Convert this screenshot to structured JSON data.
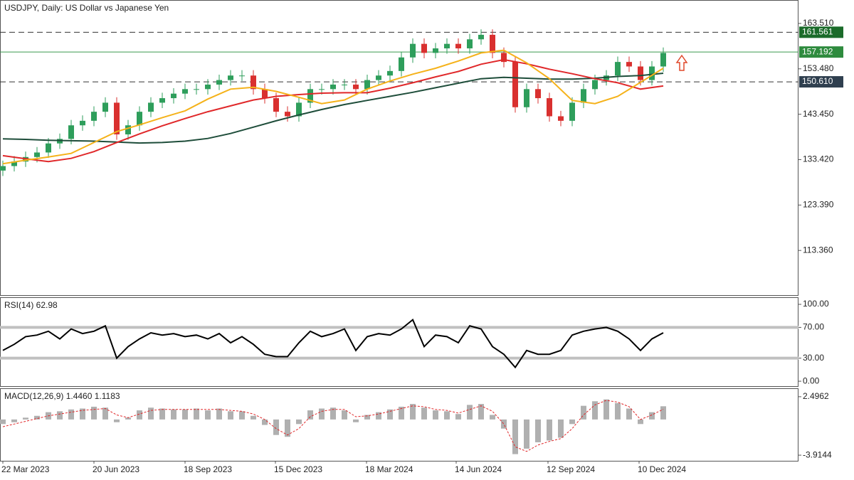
{
  "chart_data": [
    {
      "type": "candlestick",
      "title": "USDJPY, Daily:  US Dollar vs Japanese Yen",
      "x": [
        0,
        8,
        16,
        24,
        32,
        40,
        48,
        56,
        64,
        72,
        80,
        88,
        96,
        104,
        112,
        120,
        128,
        136,
        144,
        152,
        160,
        168,
        176,
        184,
        192,
        200,
        208,
        216,
        224,
        232,
        240,
        248,
        256,
        264,
        272,
        280,
        288,
        296,
        304,
        312,
        320,
        328,
        336,
        344,
        352,
        360,
        368,
        376,
        384,
        392,
        400,
        408,
        416,
        424,
        432,
        440,
        448,
        456,
        464
      ],
      "open": [
        131,
        132,
        133,
        134,
        135,
        137,
        138,
        141,
        142,
        144,
        146,
        139,
        141,
        144,
        146,
        147,
        148,
        149,
        149,
        150,
        151,
        152,
        152,
        149,
        147,
        144,
        143,
        146,
        149,
        149,
        150,
        150,
        149,
        151,
        152,
        153,
        156,
        159,
        157,
        158,
        159,
        158,
        160,
        161,
        157,
        155,
        145,
        149,
        147,
        143,
        142,
        146,
        149,
        151,
        152,
        155,
        154,
        151,
        154
      ],
      "high": [
        133.2,
        134.2,
        135.2,
        136.2,
        138.2,
        139.2,
        142.2,
        143.2,
        145.2,
        147.2,
        147.2,
        142.2,
        145.2,
        147.2,
        148.2,
        149.2,
        150.2,
        150.2,
        151.2,
        152.2,
        153.2,
        153.2,
        153.2,
        150.2,
        148.2,
        145.2,
        147.2,
        150.2,
        150.2,
        151.2,
        151.2,
        151.2,
        152.2,
        153.2,
        154.2,
        157.2,
        160.2,
        160.2,
        159.2,
        160.2,
        160.2,
        161.2,
        162.2,
        162.2,
        158.2,
        156.2,
        150.2,
        150.2,
        148.2,
        144.2,
        147.2,
        150.2,
        152.2,
        153.2,
        156.2,
        156.2,
        155.2,
        155.2,
        158.2
      ],
      "low": [
        129.8,
        130.8,
        131.8,
        132.8,
        133.8,
        135.8,
        136.8,
        139.8,
        140.8,
        142.8,
        137.8,
        137.8,
        139.8,
        142.8,
        144.8,
        145.8,
        146.8,
        147.8,
        147.8,
        148.8,
        149.8,
        150.8,
        147.8,
        145.8,
        142.8,
        141.8,
        141.8,
        144.8,
        147.8,
        147.8,
        148.8,
        147.8,
        147.8,
        149.8,
        150.8,
        151.8,
        154.8,
        155.8,
        155.8,
        156.8,
        156.8,
        156.8,
        158.8,
        155.8,
        153.8,
        143.8,
        143.8,
        145.8,
        141.8,
        140.8,
        140.8,
        144.8,
        147.8,
        149.8,
        150.8,
        152.8,
        149.8,
        149.8,
        152.8
      ],
      "close": [
        132,
        133,
        134,
        135,
        137,
        138,
        141,
        142,
        144,
        146,
        139,
        141,
        144,
        146,
        147,
        148,
        149,
        149,
        150,
        151,
        152,
        152,
        149,
        147,
        144,
        143,
        146,
        149,
        149,
        150,
        150,
        149,
        151,
        152,
        153,
        156,
        159,
        157,
        158,
        159,
        158,
        160,
        161,
        157,
        155,
        145,
        149,
        147,
        143,
        142,
        146,
        149,
        151,
        152,
        155,
        154,
        151,
        154,
        157
      ],
      "up_color": "#2e9e5b",
      "down_color": "#d9302f",
      "series": [
        {
          "color": "#1e4d3a",
          "x": [
            0,
            16,
            32,
            48,
            64,
            80,
            96,
            112,
            128,
            144,
            160,
            176,
            192,
            208,
            224,
            240,
            256,
            272,
            288,
            304,
            320,
            336,
            352,
            368,
            384,
            400,
            416,
            432,
            448,
            464
          ],
          "values": [
            138.0,
            137.9,
            137.7,
            137.6,
            137.5,
            137.3,
            137.1,
            137.2,
            137.5,
            138.1,
            139.2,
            140.6,
            142.0,
            143.3,
            144.5,
            145.6,
            146.5,
            147.4,
            148.3,
            149.3,
            150.3,
            151.3,
            151.6,
            151.4,
            151.2,
            151.2,
            151.4,
            151.8,
            152.0,
            152.5
          ]
        },
        {
          "color": "#e0282a",
          "x": [
            0,
            16,
            32,
            48,
            64,
            80,
            96,
            112,
            128,
            144,
            160,
            176,
            192,
            208,
            224,
            240,
            256,
            272,
            288,
            304,
            320,
            336,
            352,
            368,
            384,
            400,
            416,
            432,
            448,
            464
          ],
          "values": [
            134.3,
            133.6,
            133.0,
            133.7,
            135.2,
            137.2,
            139.1,
            140.9,
            142.5,
            144.0,
            145.3,
            146.6,
            147.4,
            147.8,
            148.1,
            148.2,
            148.2,
            149.2,
            150.4,
            151.7,
            152.9,
            154.5,
            155.5,
            154.6,
            153.4,
            152.4,
            151.3,
            150.4,
            149.0,
            149.7
          ]
        },
        {
          "color": "#f5b21a",
          "x": [
            0,
            16,
            32,
            48,
            64,
            80,
            96,
            112,
            128,
            144,
            160,
            176,
            192,
            208,
            224,
            240,
            256,
            272,
            288,
            304,
            320,
            336,
            352,
            368,
            384,
            400,
            416,
            432,
            448,
            464
          ],
          "values": [
            132.5,
            133.3,
            134.0,
            134.8,
            137.2,
            139.6,
            141.1,
            142.7,
            144.2,
            146.8,
            149.0,
            149.4,
            148.5,
            147.2,
            145.8,
            146.6,
            149.0,
            150.8,
            152.3,
            153.6,
            155.2,
            157.0,
            157.6,
            154.8,
            151.3,
            146.5,
            145.8,
            147.4,
            150.5,
            153.6
          ]
        }
      ],
      "levels": [
        {
          "value": 161.561,
          "style": "dashed",
          "color": "#333333",
          "label_bg": "#1b6b2a"
        },
        {
          "value": 157.192,
          "style": "solid",
          "color": "#3a9a4d",
          "label_bg": "#2e8b3e"
        },
        {
          "value": 150.61,
          "label": "150.610",
          "style": "dashed",
          "color": "#333333",
          "label_bg": "#2f3f4f"
        }
      ],
      "xlim": [
        -2,
        559
      ],
      "ylim": [
        103.49,
        168.53
      ],
      "yticks": [
        {
          "value": 163.51,
          "label": "163.510"
        },
        {
          "value": 153.48,
          "label": "153.480"
        },
        {
          "value": 143.45,
          "label": "143.450"
        },
        {
          "value": 133.42,
          "label": "133.420"
        },
        {
          "value": 123.39,
          "label": "123.390"
        },
        {
          "value": 113.36,
          "label": "113.360"
        }
      ]
    },
    {
      "type": "line",
      "title": "RSI(14) 62.98",
      "color": "#000000",
      "x": [
        0,
        8,
        16,
        24,
        32,
        40,
        48,
        56,
        64,
        72,
        80,
        88,
        96,
        104,
        112,
        120,
        128,
        136,
        144,
        152,
        160,
        168,
        176,
        184,
        192,
        200,
        208,
        216,
        224,
        232,
        240,
        248,
        256,
        264,
        272,
        280,
        288,
        296,
        304,
        312,
        320,
        328,
        336,
        344,
        352,
        360,
        368,
        376,
        384,
        392,
        400,
        408,
        416,
        424,
        432,
        440,
        448,
        456,
        464
      ],
      "values": [
        40,
        48,
        58,
        60,
        65,
        55,
        68,
        62,
        65,
        72,
        30,
        45,
        55,
        63,
        60,
        62,
        58,
        60,
        55,
        62,
        50,
        58,
        48,
        35,
        32,
        32,
        50,
        65,
        58,
        62,
        68,
        40,
        58,
        62,
        60,
        68,
        80,
        45,
        60,
        58,
        50,
        72,
        68,
        45,
        35,
        18,
        40,
        35,
        35,
        40,
        60,
        65,
        68,
        70,
        65,
        55,
        40,
        55,
        63
      ],
      "levels": [
        70,
        30
      ],
      "level_color": "#c0c0c0",
      "xlim": [
        -2,
        559
      ],
      "ylim": [
        -6.4,
        108.3
      ],
      "yticks": [
        {
          "value": 100,
          "label": "100.00"
        },
        {
          "value": 70,
          "label": "70.00"
        },
        {
          "value": 30,
          "label": "30.00"
        },
        {
          "value": 0,
          "label": "0.00"
        }
      ]
    },
    {
      "type": "macd",
      "title": "MACD(12,26,9) 1.4460 1.1183",
      "x": [
        0,
        8,
        16,
        24,
        32,
        40,
        48,
        56,
        64,
        72,
        80,
        88,
        96,
        104,
        112,
        120,
        128,
        136,
        144,
        152,
        160,
        168,
        176,
        184,
        192,
        200,
        208,
        216,
        224,
        232,
        240,
        248,
        256,
        264,
        272,
        280,
        288,
        296,
        304,
        312,
        320,
        328,
        336,
        344,
        352,
        360,
        368,
        376,
        384,
        392,
        400,
        408,
        416,
        424,
        432,
        440,
        448,
        456,
        464
      ],
      "histogram": [
        -0.5,
        -0.3,
        0.2,
        0.4,
        0.8,
        0.9,
        1.1,
        1.2,
        1.4,
        1.3,
        -0.3,
        0.2,
        1.0,
        1.3,
        1.2,
        1.1,
        1.1,
        1.2,
        1.0,
        1.2,
        0.9,
        0.9,
        0.4,
        -0.6,
        -1.7,
        -1.9,
        -0.5,
        1.0,
        1.2,
        1.3,
        1.0,
        -0.3,
        0.5,
        0.8,
        1.1,
        1.4,
        1.7,
        1.3,
        1.0,
        0.9,
        0.6,
        1.6,
        1.7,
        0.5,
        -1.0,
        -3.8,
        -3.2,
        -2.5,
        -2.3,
        -2.0,
        -0.5,
        1.5,
        2.0,
        2.2,
        1.8,
        1.2,
        -0.5,
        0.8,
        1.45
      ],
      "signal": [
        -0.8,
        -0.5,
        -0.2,
        0.1,
        0.4,
        0.6,
        0.8,
        1.0,
        1.1,
        1.2,
        0.5,
        0.2,
        0.6,
        1.0,
        1.1,
        1.1,
        1.1,
        1.1,
        1.1,
        1.1,
        1.0,
        0.9,
        0.6,
        0.0,
        -1.0,
        -1.7,
        -1.0,
        0.3,
        0.9,
        1.1,
        1.1,
        0.3,
        0.4,
        0.6,
        0.9,
        1.2,
        1.5,
        1.4,
        1.1,
        1.0,
        0.7,
        1.1,
        1.5,
        0.9,
        -0.5,
        -3.0,
        -3.5,
        -2.8,
        -2.4,
        -2.1,
        -1.0,
        0.5,
        1.6,
        2.1,
        1.9,
        1.4,
        0.0,
        0.5,
        1.12
      ],
      "histogram_color": "#b0b0b0",
      "signal_color": "#e0282a",
      "xlim": [
        -2,
        559
      ],
      "ylim": [
        -4.532,
        3.345
      ],
      "yticks": [
        {
          "value": 2.4962,
          "label": "2.4962"
        },
        {
          "value": -3.9144,
          "label": "-3.9144"
        }
      ],
      "xticks": [
        {
          "value": 0,
          "label": "22 Mar 2023"
        },
        {
          "value": 64,
          "label": "20 Jun 2023"
        },
        {
          "value": 128,
          "label": "18 Sep 2023"
        },
        {
          "value": 191.5,
          "label": "15 Dec 2023"
        },
        {
          "value": 255.5,
          "label": "18 Mar 2024"
        },
        {
          "value": 318.5,
          "label": "14 Jun 2024"
        },
        {
          "value": 383,
          "label": "12 Sep 2024"
        },
        {
          "value": 447,
          "label": "10 Dec 2024"
        }
      ]
    }
  ]
}
